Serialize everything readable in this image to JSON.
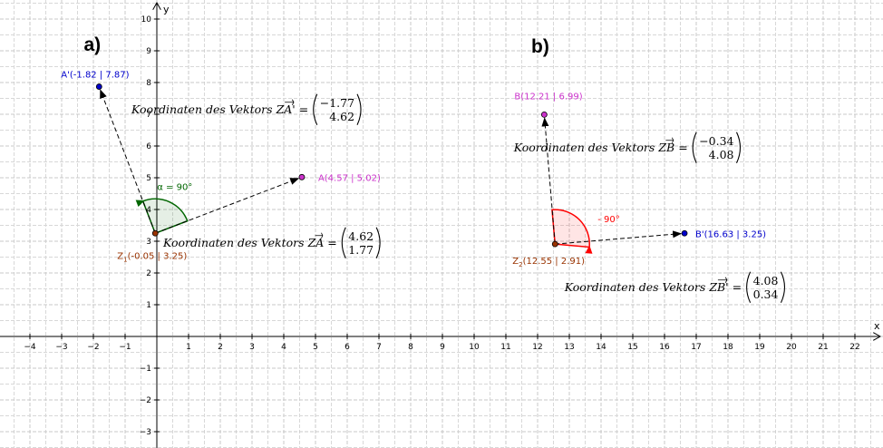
{
  "axes": {
    "x_label": "x",
    "y_label": "y",
    "x_range": [
      -5,
      22.7
    ],
    "y_range": [
      -3.5,
      10.5
    ],
    "x_ticks": [
      -4,
      -3,
      -2,
      -1,
      1,
      2,
      3,
      4,
      5,
      6,
      7,
      8,
      9,
      10,
      11,
      12,
      13,
      14,
      15,
      16,
      17,
      18,
      19,
      20,
      21,
      22
    ],
    "y_ticks": [
      -3,
      -2,
      -1,
      1,
      2,
      3,
      4,
      5,
      6,
      7,
      8,
      9,
      10
    ],
    "grid": true,
    "major_grid_color": "#c8c8c8",
    "minor_grid_color": "#d8d8d8"
  },
  "parts": [
    {
      "label": "a)",
      "x": -2.3,
      "y": 9.0
    },
    {
      "label": "b)",
      "x": 11.8,
      "y": 8.95
    }
  ],
  "points": [
    {
      "id": "Z1",
      "name": "Z",
      "subscript": "1",
      "coords": "(-0.05 | 3.25)",
      "x": -0.05,
      "y": 3.25,
      "color": "#993300",
      "text_color": "#993300"
    },
    {
      "id": "A",
      "name": "A",
      "subscript": "",
      "coords": "(4.57 | 5.02)",
      "x": 4.57,
      "y": 5.02,
      "color": "#cc33cc",
      "text_color": "#cc33cc"
    },
    {
      "id": "A1",
      "name": "A'",
      "subscript": "",
      "coords": "(-1.82 | 7.87)",
      "x": -1.82,
      "y": 7.87,
      "color": "#0000cc",
      "text_color": "#0000cc"
    },
    {
      "id": "Z2",
      "name": "Z",
      "subscript": "2",
      "coords": "(12.55 | 2.91)",
      "x": 12.55,
      "y": 2.91,
      "color": "#993300",
      "text_color": "#993300"
    },
    {
      "id": "B",
      "name": "B",
      "subscript": "",
      "coords": "(12.21 | 6.99)",
      "x": 12.21,
      "y": 6.99,
      "color": "#cc33cc",
      "text_color": "#cc33cc"
    },
    {
      "id": "B1",
      "name": "B'",
      "subscript": "",
      "coords": "(16.63 | 3.25)",
      "x": 16.63,
      "y": 3.25,
      "color": "#0000cc",
      "text_color": "#0000cc"
    }
  ],
  "vectors": [
    {
      "id": "ZA",
      "from": "Z1",
      "to": "A"
    },
    {
      "id": "ZA1",
      "from": "Z1",
      "to": "A1"
    },
    {
      "id": "ZB",
      "from": "Z2",
      "to": "B"
    },
    {
      "id": "ZB1",
      "from": "Z2",
      "to": "B1"
    }
  ],
  "angles": [
    {
      "id": "alpha",
      "label": "α = 90°",
      "center": "Z1",
      "from_angle_deg": 21,
      "to_angle_deg": 111,
      "color": "#006600",
      "fill": "#006600"
    },
    {
      "id": "beta",
      "label": "- 90°",
      "center": "Z2",
      "from_angle_deg": -5,
      "to_angle_deg": 95,
      "color": "#ff0000",
      "fill": "#ff0000"
    }
  ],
  "coord_texts": [
    {
      "id": "ZA1",
      "prefix": "Koordinaten des Vektors",
      "vec": "ZA'",
      "top": "−1.77",
      "bottom": "4.62",
      "x": -0.8,
      "y": 7.15
    },
    {
      "id": "ZA",
      "prefix": "Koordinaten des Vektors",
      "vec": "ZA",
      "top": "4.62",
      "bottom": "1.77",
      "x": 0.2,
      "y": 2.95
    },
    {
      "id": "ZB",
      "prefix": "Koordinaten des Vektors",
      "vec": "ZB",
      "top": "−0.34",
      "bottom": "4.08",
      "x": 11.25,
      "y": 5.95
    },
    {
      "id": "ZB1",
      "prefix": "Koordinaten des Vektors",
      "vec": "ZB'",
      "top": "4.08",
      "bottom": "0.34",
      "x": 12.85,
      "y": 1.55
    }
  ]
}
